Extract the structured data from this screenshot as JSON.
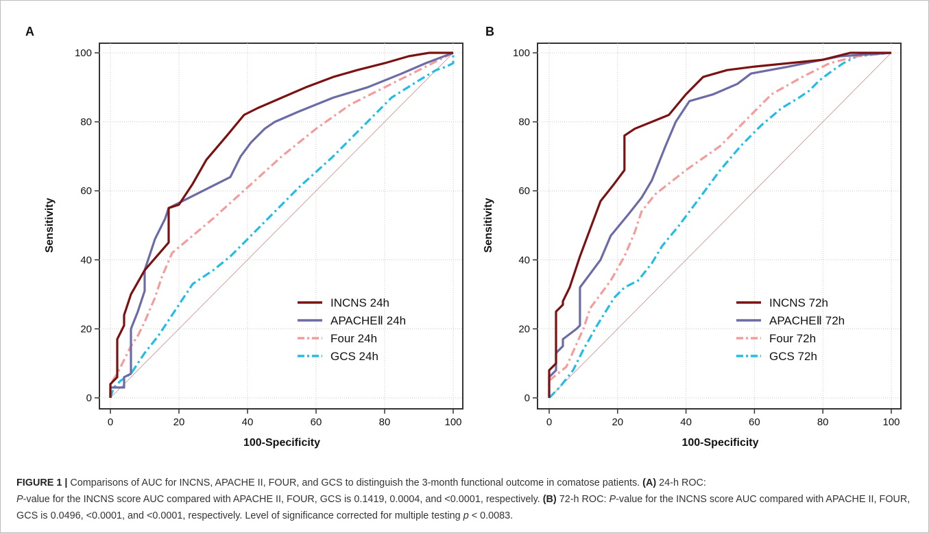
{
  "chart_data": [
    {
      "type": "line",
      "panel_label": "A",
      "xlabel": "100-Specificity",
      "ylabel": "Sensitivity",
      "xlim": [
        0,
        100
      ],
      "ylim": [
        0,
        100
      ],
      "xticks": [
        "0",
        "20",
        "40",
        "60",
        "80",
        "100"
      ],
      "yticks": [
        "0",
        "20",
        "40",
        "60",
        "80",
        "100"
      ],
      "grid": true,
      "legend_position": "bottom-right",
      "reference_line": [
        [
          0,
          0
        ],
        [
          100,
          100
        ]
      ],
      "series": [
        {
          "name": "INCNS 24h",
          "color": "#7b1111",
          "dash": "solid",
          "points": [
            [
              0,
              0
            ],
            [
              0,
              4
            ],
            [
              2,
              6
            ],
            [
              2,
              17
            ],
            [
              4,
              21
            ],
            [
              4,
              24
            ],
            [
              5,
              27
            ],
            [
              6,
              30
            ],
            [
              10,
              37
            ],
            [
              17,
              45
            ],
            [
              17,
              55
            ],
            [
              20,
              56
            ],
            [
              24,
              62
            ],
            [
              28,
              69
            ],
            [
              34,
              76
            ],
            [
              39,
              82
            ],
            [
              43,
              84
            ],
            [
              50,
              87
            ],
            [
              57,
              90
            ],
            [
              65,
              93
            ],
            [
              72,
              95
            ],
            [
              80,
              97
            ],
            [
              87,
              99
            ],
            [
              93,
              100
            ],
            [
              100,
              100
            ]
          ]
        },
        {
          "name": "APACHEⅡ 24h",
          "color": "#6b6ba6",
          "dash": "solid",
          "points": [
            [
              0,
              0
            ],
            [
              0,
              3
            ],
            [
              4,
              3
            ],
            [
              4,
              6
            ],
            [
              6,
              7
            ],
            [
              6,
              20
            ],
            [
              8,
              25
            ],
            [
              10,
              31
            ],
            [
              10,
              37
            ],
            [
              13,
              46
            ],
            [
              16,
              52
            ],
            [
              17,
              55
            ],
            [
              35,
              64
            ],
            [
              38,
              70
            ],
            [
              41,
              74
            ],
            [
              45,
              78
            ],
            [
              48,
              80
            ],
            [
              55,
              83
            ],
            [
              65,
              87
            ],
            [
              75,
              90
            ],
            [
              85,
              94
            ],
            [
              92,
              97
            ],
            [
              100,
              100
            ]
          ]
        },
        {
          "name": "Four 24h",
          "color": "#f49c9c",
          "dash": "dashdot",
          "points": [
            [
              0,
              0
            ],
            [
              0,
              4
            ],
            [
              2,
              7
            ],
            [
              4,
              11
            ],
            [
              6,
              15
            ],
            [
              8,
              18
            ],
            [
              10,
              22
            ],
            [
              13,
              29
            ],
            [
              15,
              35
            ],
            [
              18,
              42
            ],
            [
              24,
              47
            ],
            [
              30,
              52
            ],
            [
              40,
              61
            ],
            [
              50,
              70
            ],
            [
              60,
              78
            ],
            [
              70,
              85
            ],
            [
              80,
              90
            ],
            [
              90,
              95
            ],
            [
              100,
              100
            ]
          ]
        },
        {
          "name": "GCS 24h",
          "color": "#22bde6",
          "dash": "dashdot",
          "points": [
            [
              0,
              0
            ],
            [
              1,
              3
            ],
            [
              3,
              5
            ],
            [
              6,
              7
            ],
            [
              8,
              10
            ],
            [
              10,
              13
            ],
            [
              14,
              18
            ],
            [
              18,
              24
            ],
            [
              22,
              30
            ],
            [
              24,
              33
            ],
            [
              30,
              37
            ],
            [
              35,
              41
            ],
            [
              45,
              51
            ],
            [
              55,
              61
            ],
            [
              65,
              70
            ],
            [
              75,
              80
            ],
            [
              82,
              87
            ],
            [
              90,
              92
            ],
            [
              95,
              95
            ],
            [
              98,
              96
            ],
            [
              100,
              97
            ],
            [
              100,
              100
            ]
          ]
        }
      ]
    },
    {
      "type": "line",
      "panel_label": "B",
      "xlabel": "100-Specificity",
      "ylabel": "Sensitivity",
      "xlim": [
        0,
        100
      ],
      "ylim": [
        0,
        100
      ],
      "xticks": [
        "0",
        "20",
        "40",
        "60",
        "80",
        "100"
      ],
      "yticks": [
        "0",
        "20",
        "40",
        "60",
        "80",
        "100"
      ],
      "grid": true,
      "legend_position": "bottom-right",
      "reference_line": [
        [
          0,
          0
        ],
        [
          100,
          100
        ]
      ],
      "series": [
        {
          "name": "INCNS 72h",
          "color": "#7b1111",
          "dash": "solid",
          "points": [
            [
              0,
              0
            ],
            [
              0,
              8
            ],
            [
              2,
              10
            ],
            [
              2,
              25
            ],
            [
              4,
              27
            ],
            [
              4,
              28
            ],
            [
              6,
              32
            ],
            [
              9,
              41
            ],
            [
              12,
              49
            ],
            [
              15,
              57
            ],
            [
              19,
              62
            ],
            [
              22,
              66
            ],
            [
              22,
              76
            ],
            [
              25,
              78
            ],
            [
              30,
              80
            ],
            [
              35,
              82
            ],
            [
              40,
              88
            ],
            [
              45,
              93
            ],
            [
              52,
              95
            ],
            [
              60,
              96
            ],
            [
              70,
              97
            ],
            [
              80,
              98
            ],
            [
              88,
              100
            ],
            [
              100,
              100
            ]
          ]
        },
        {
          "name": "APACHEⅡ 72h",
          "color": "#6b6ba6",
          "dash": "solid",
          "points": [
            [
              0,
              0
            ],
            [
              0,
              6
            ],
            [
              2,
              8
            ],
            [
              2,
              13
            ],
            [
              4,
              15
            ],
            [
              4,
              17
            ],
            [
              8,
              20
            ],
            [
              9,
              21
            ],
            [
              9,
              32
            ],
            [
              12,
              36
            ],
            [
              15,
              40
            ],
            [
              18,
              47
            ],
            [
              23,
              53
            ],
            [
              27,
              58
            ],
            [
              30,
              63
            ],
            [
              34,
              73
            ],
            [
              37,
              80
            ],
            [
              41,
              86
            ],
            [
              48,
              88
            ],
            [
              55,
              91
            ],
            [
              59,
              94
            ],
            [
              70,
              96
            ],
            [
              80,
              98
            ],
            [
              85,
              99
            ],
            [
              100,
              100
            ]
          ]
        },
        {
          "name": "Four 72h",
          "color": "#f49c9c",
          "dash": "dashdot",
          "points": [
            [
              0,
              0
            ],
            [
              0,
              5
            ],
            [
              5,
              9
            ],
            [
              10,
              20
            ],
            [
              12,
              26
            ],
            [
              15,
              30
            ],
            [
              18,
              34
            ],
            [
              22,
              41
            ],
            [
              25,
              48
            ],
            [
              27,
              54
            ],
            [
              31,
              59
            ],
            [
              40,
              66
            ],
            [
              50,
              73
            ],
            [
              58,
              81
            ],
            [
              65,
              88
            ],
            [
              74,
              93
            ],
            [
              82,
              97
            ],
            [
              90,
              99
            ],
            [
              100,
              100
            ]
          ]
        },
        {
          "name": "GCS 72h",
          "color": "#22bde6",
          "dash": "dashdot",
          "points": [
            [
              0,
              0
            ],
            [
              3,
              3
            ],
            [
              7,
              8
            ],
            [
              10,
              14
            ],
            [
              14,
              21
            ],
            [
              19,
              29
            ],
            [
              22,
              32
            ],
            [
              26,
              34
            ],
            [
              30,
              39
            ],
            [
              33,
              44
            ],
            [
              38,
              50
            ],
            [
              44,
              58
            ],
            [
              50,
              66
            ],
            [
              56,
              73
            ],
            [
              62,
              79
            ],
            [
              68,
              84
            ],
            [
              73,
              87
            ],
            [
              76,
              89
            ],
            [
              79,
              92
            ],
            [
              83,
              95
            ],
            [
              86,
              97
            ],
            [
              90,
              99
            ],
            [
              100,
              100
            ]
          ]
        }
      ]
    }
  ],
  "caption": {
    "label": "FIGURE 1 |",
    "intro": "Comparisons of AUC for INCNS, APACHE II, FOUR, and GCS to distinguish the 3-month functional outcome in comatose patients.",
    "part_a_label": "(A)",
    "part_a_text_before_p": "24-h ROC:",
    "p_symbol": "P",
    "part_a_text_after_p": "-value for the INCNS score AUC compared with APACHE II, FOUR, GCS is 0.1419, 0.0004, and <0.0001, respectively.",
    "part_b_label": "(B)",
    "part_b_text_before_p": "72-h ROC:",
    "part_b_text_after_p": "-value for the INCNS score AUC compared with APACHE II, FOUR, GCS is 0.0496, <0.0001, and <0.0001, respectively. Level of significance corrected for multiple testing",
    "rho_symbol": "p",
    "threshold_text": "< 0.0083."
  }
}
